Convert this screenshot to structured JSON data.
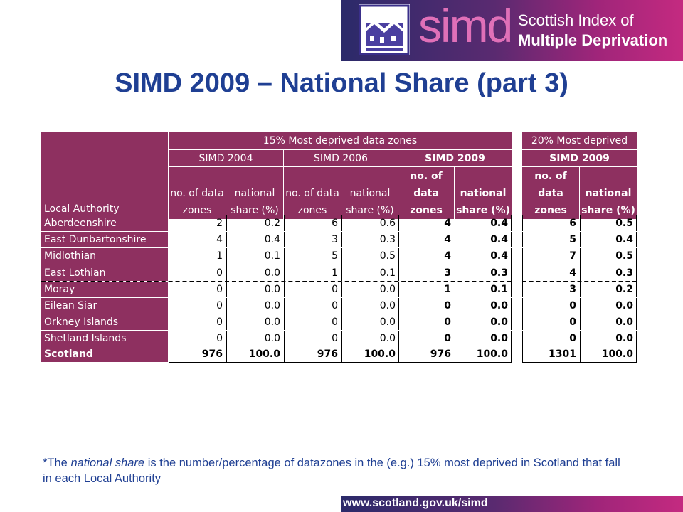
{
  "banner": {
    "logo_word": "simd",
    "line1": "Scottish Index of",
    "line2": "Multiple Deprivation"
  },
  "title": "SIMD 2009 – National Share (part 3)",
  "table": {
    "group1": "15% Most deprived data zones",
    "group2": "20% Most deprived",
    "sub": [
      "SIMD 2004",
      "SIMD 2006",
      "SIMD 2009",
      "SIMD 2009"
    ],
    "col_la": "Local Authority",
    "col_count": "no. of data zones",
    "col_share": "national share (%)",
    "col_count_bold": "no. of data zones",
    "col_share_bold": "national share (%)",
    "rows": [
      {
        "name": "Aberdeenshire",
        "v": [
          "2",
          "0.2",
          "6",
          "0.6",
          "4",
          "0.4",
          "6",
          "0.5"
        ]
      },
      {
        "name": "East Dunbartonshire",
        "v": [
          "4",
          "0.4",
          "3",
          "0.3",
          "4",
          "0.4",
          "5",
          "0.4"
        ]
      },
      {
        "name": "Midlothian",
        "v": [
          "1",
          "0.1",
          "5",
          "0.5",
          "4",
          "0.4",
          "7",
          "0.5"
        ]
      },
      {
        "name": "East Lothian",
        "v": [
          "0",
          "0.0",
          "1",
          "0.1",
          "3",
          "0.3",
          "4",
          "0.3"
        ]
      },
      {
        "name": "Moray",
        "v": [
          "0",
          "0.0",
          "0",
          "0.0",
          "1",
          "0.1",
          "3",
          "0.2"
        ]
      },
      {
        "name": "Eilean Siar",
        "v": [
          "0",
          "0.0",
          "0",
          "0.0",
          "0",
          "0.0",
          "0",
          "0.0"
        ]
      },
      {
        "name": "Orkney Islands",
        "v": [
          "0",
          "0.0",
          "0",
          "0.0",
          "0",
          "0.0",
          "0",
          "0.0"
        ]
      },
      {
        "name": "Shetland Islands",
        "v": [
          "0",
          "0.0",
          "0",
          "0.0",
          "0",
          "0.0",
          "0",
          "0.0"
        ]
      }
    ],
    "total": {
      "name": "Scotland",
      "v": [
        "976",
        "100.0",
        "976",
        "100.0",
        "976",
        "100.0",
        "1301",
        "100.0"
      ]
    }
  },
  "footnote": {
    "pre": "*The ",
    "em": "national share",
    "post": " is the number/percentage of datazones in the (e.g.) 15% most deprived in Scotland that fall in each Local Authority"
  },
  "footer_url": "www.scotland.gov.uk/simd",
  "colors": {
    "header": "#8e3060",
    "title": "#1f3f93"
  }
}
